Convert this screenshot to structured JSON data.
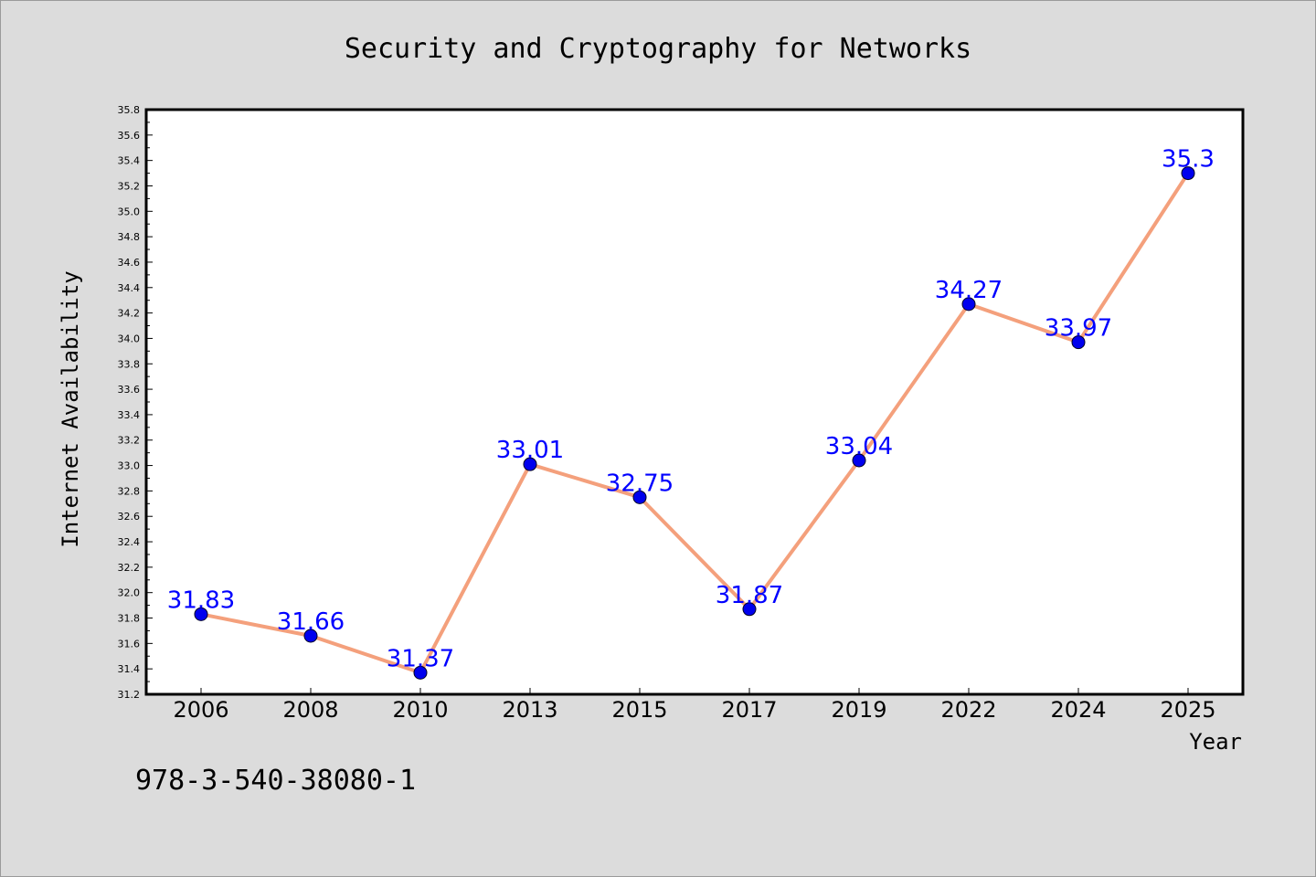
{
  "chart_data": {
    "type": "line",
    "title": "Security and Cryptography for Networks",
    "xlabel": "Year",
    "ylabel": "Internet Availability",
    "categories": [
      "2006",
      "2008",
      "2010",
      "2013",
      "2015",
      "2017",
      "2019",
      "2022",
      "2024",
      "2025"
    ],
    "values": [
      31.83,
      31.66,
      31.37,
      33.01,
      32.75,
      31.87,
      33.04,
      34.27,
      33.97,
      35.3
    ],
    "data_labels": [
      "31.83",
      "31.66",
      "31.37",
      "33.01",
      "32.75",
      "31.87",
      "33.04",
      "34.27",
      "33.97",
      "35.3"
    ],
    "ylim": [
      31.2,
      35.8
    ],
    "yticks": [
      "31.2",
      "31.4",
      "31.6",
      "31.8",
      "32.0",
      "32.2",
      "32.4",
      "32.6",
      "32.8",
      "33.0",
      "33.2",
      "33.4",
      "33.6",
      "33.8",
      "34.0",
      "34.2",
      "34.4",
      "34.6",
      "34.8",
      "35.0",
      "35.2",
      "35.4",
      "35.6",
      "35.8"
    ],
    "grid": false,
    "line_color": "#f4a07c",
    "marker_color": "#0000ee",
    "label_color": "#0000ff"
  },
  "footer": {
    "isbn": "978-3-540-38080-1"
  }
}
